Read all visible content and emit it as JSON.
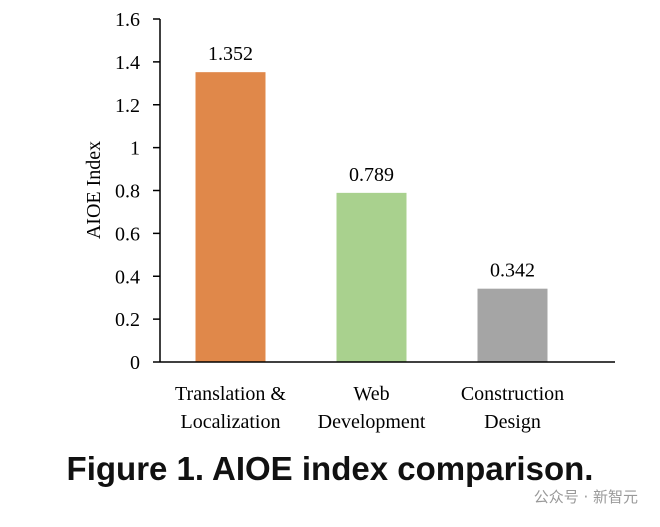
{
  "chart_data": {
    "type": "bar",
    "title": "",
    "xlabel": "",
    "ylabel": "AIOE Index",
    "ylim": [
      0,
      1.6
    ],
    "yticks": [
      "0",
      "0.2",
      "0.4",
      "0.6",
      "0.8",
      "1",
      "1.2",
      "1.4",
      "1.6"
    ],
    "ytick_values": [
      0,
      0.2,
      0.4,
      0.6,
      0.8,
      1,
      1.2,
      1.4,
      1.6
    ],
    "categories": [
      [
        "Translation &",
        "Localization"
      ],
      [
        "Web",
        "Development"
      ],
      [
        "Construction",
        "Design"
      ]
    ],
    "values": [
      1.352,
      0.789,
      0.342
    ],
    "data_labels": [
      "1.352",
      "0.789",
      "0.342"
    ],
    "colors": [
      "#E0884A",
      "#A9D18E",
      "#A5A5A5"
    ],
    "grid": false,
    "legend": "none"
  },
  "caption": "Figure 1. AIOE index comparison.",
  "watermark": "公众号 · 新智元"
}
